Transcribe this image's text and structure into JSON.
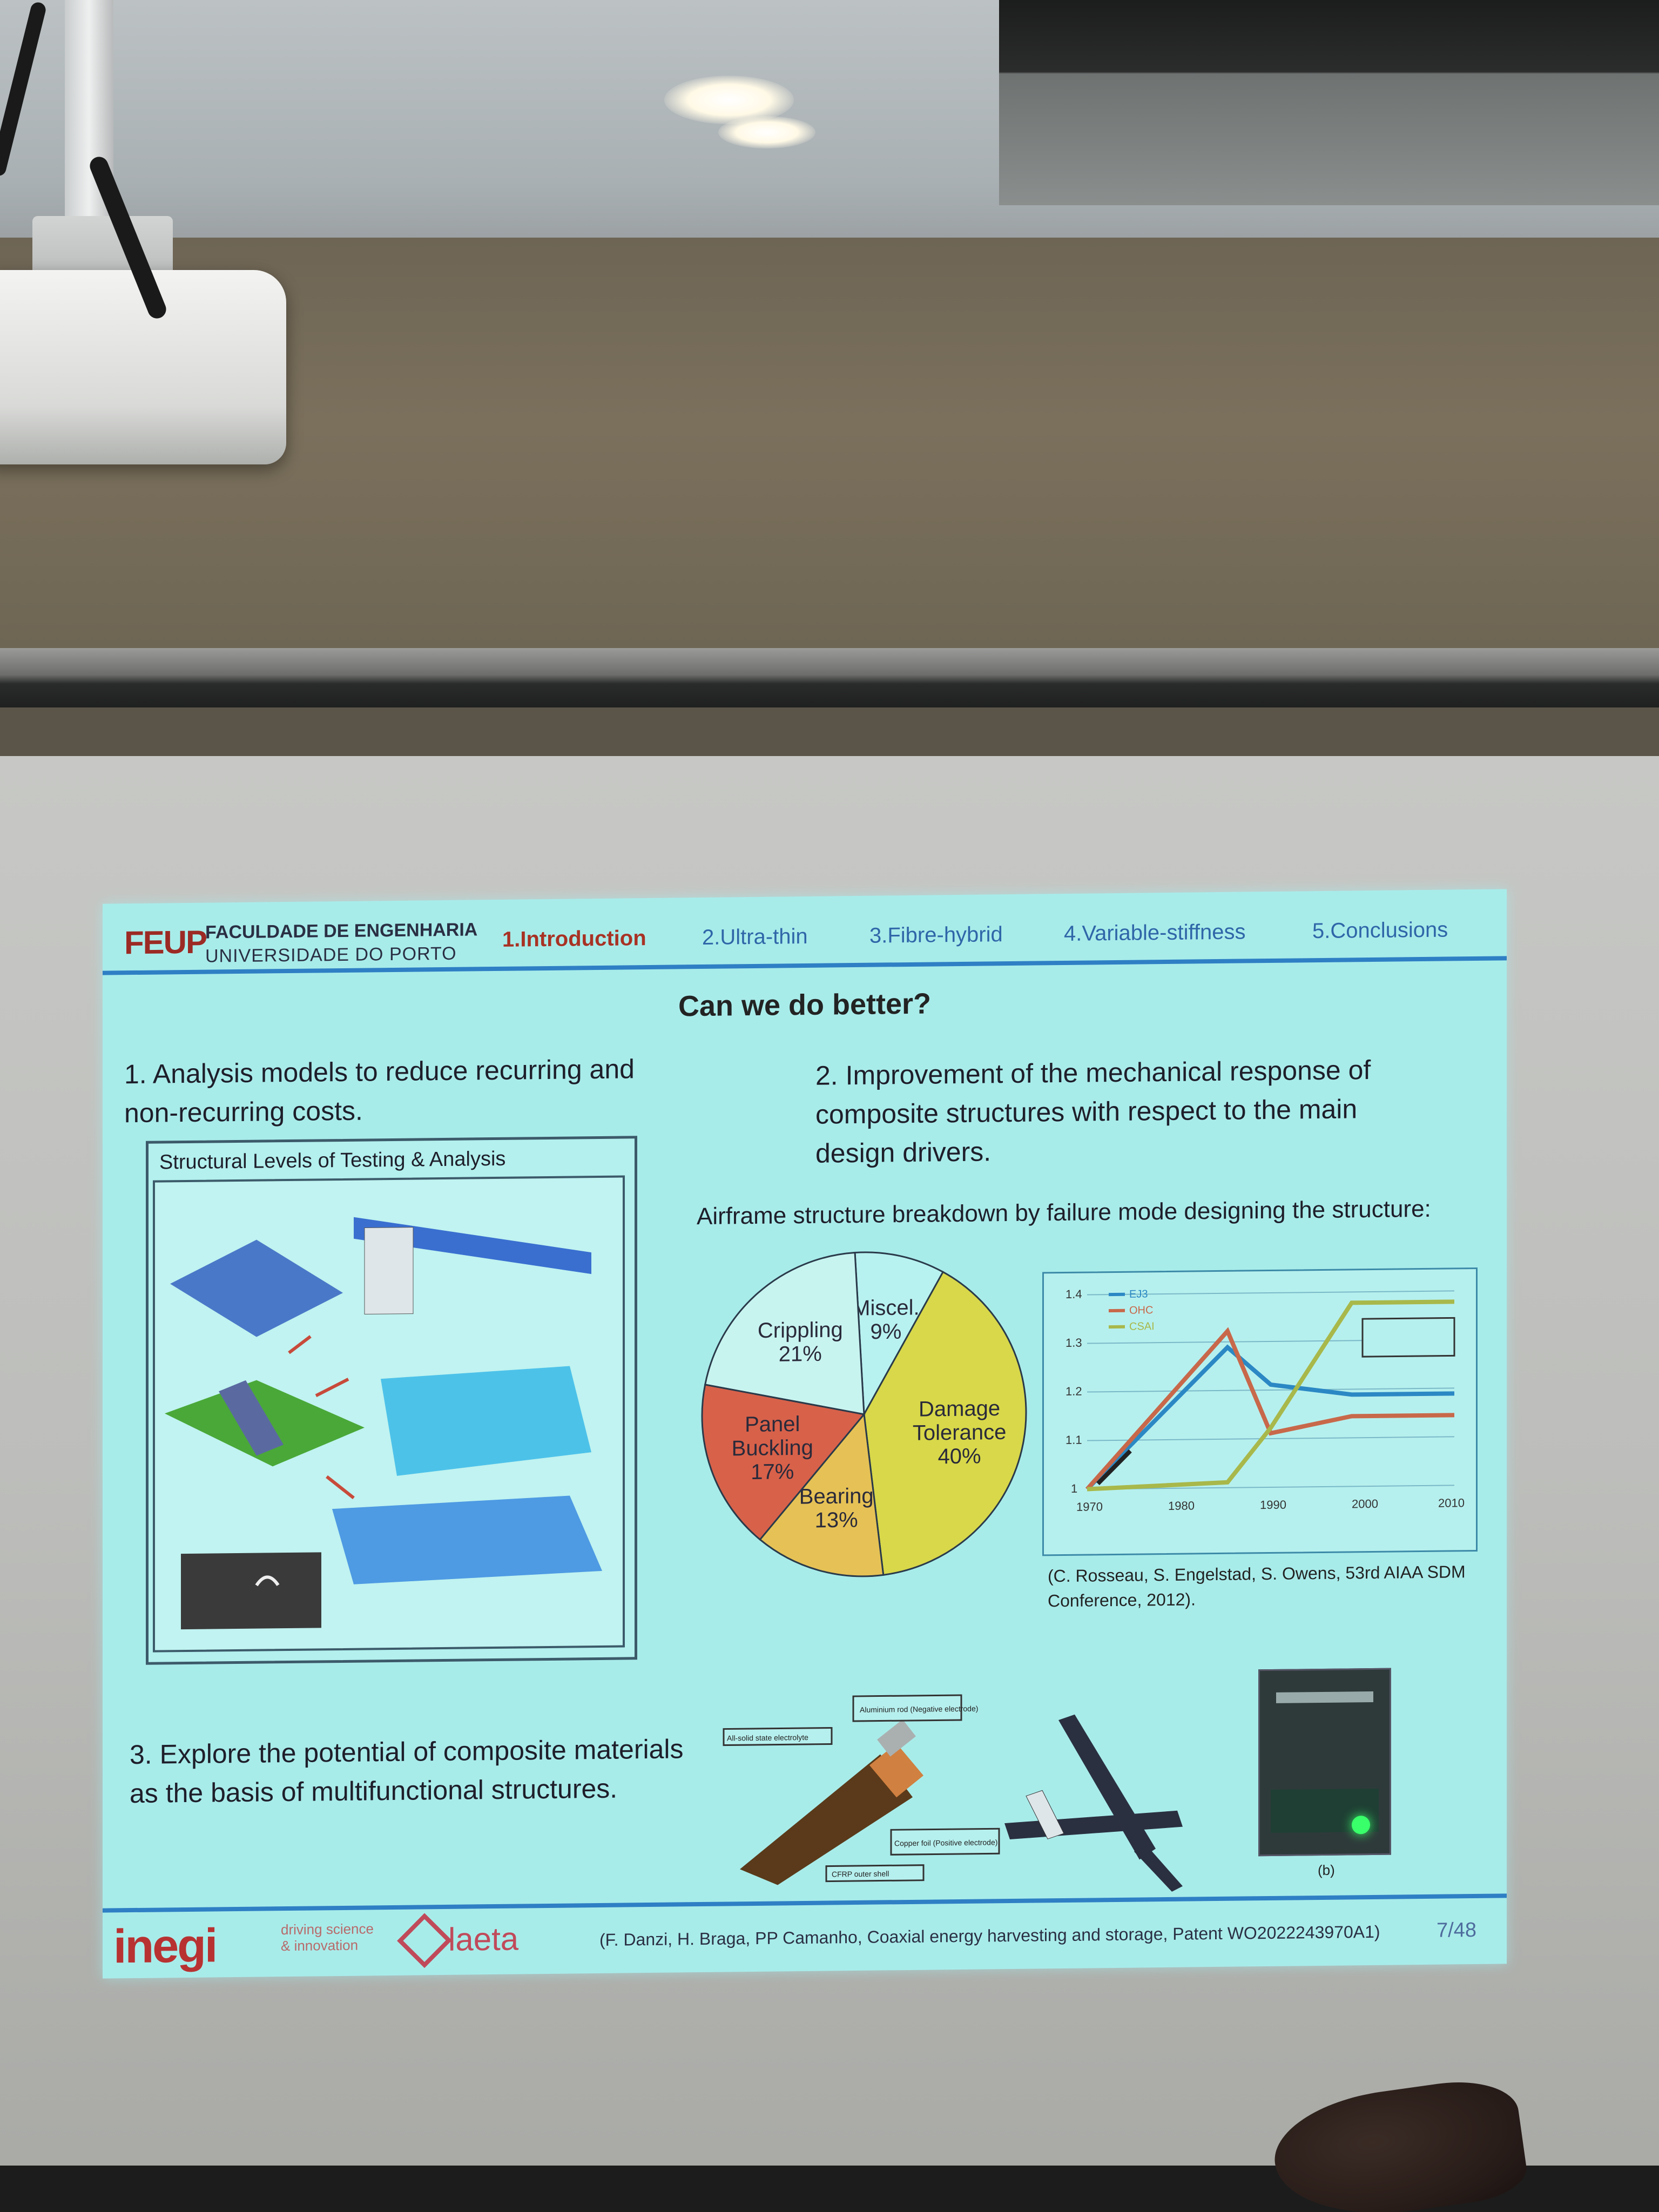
{
  "slide": {
    "header": {
      "logo_feup": "FEUP",
      "faculty": "FACULDADE DE ENGENHARIA",
      "university": "UNIVERSIDADE DO PORTO",
      "nav": [
        "1.Introduction",
        "2.Ultra-thin",
        "3.Fibre-hybrid",
        "4.Variable-stiffness",
        "5.Conclusions"
      ],
      "active_index": 0
    },
    "title": "Can we do better?",
    "point1": "1. Analysis models to reduce recurring and non-recurring costs.",
    "point1_line1": "1. Analysis models to reduce recurring and",
    "point1_line2": "non-recurring costs.",
    "structural_caption": "Structural Levels of Testing & Analysis",
    "point2_line1": "2. Improvement of the mechanical response of",
    "point2_line2": "composite structures with respect to the main",
    "point2_line3": "design drivers.",
    "breakdown_title": "Airframe structure breakdown by failure mode designing the structure:",
    "pie": {
      "slices": [
        {
          "label": "Miscel.",
          "percent_text": "9%",
          "value": 9,
          "color": "#b8f2f0"
        },
        {
          "label": "Damage Tolerance",
          "label_line1": "Damage",
          "label_line2": "Tolerance",
          "percent_text": "40%",
          "value": 40,
          "color": "#d8d84a"
        },
        {
          "label": "Bearing",
          "percent_text": "13%",
          "value": 13,
          "color": "#e6c256"
        },
        {
          "label": "Panel Buckling",
          "label_line1": "Panel",
          "label_line2": "Buckling",
          "percent_text": "17%",
          "value": 17,
          "color": "#d8614a"
        },
        {
          "label": "Crippling",
          "percent_text": "21%",
          "value": 21,
          "color": "#c8f4f0"
        }
      ]
    },
    "line_chart": {
      "legend": [
        "EJ3",
        "OHC",
        "CSAI"
      ],
      "series_colors": [
        "#2b88c4",
        "#c8684a",
        "#a8b84a"
      ],
      "x_ticks": [
        "1970",
        "1980",
        "1990",
        "2000",
        "2010"
      ],
      "y_ticks": [
        "1",
        "1.1",
        "1.2",
        "1.3",
        "1.4"
      ]
    },
    "citation1_line1": "(C. Rosseau, S. Engelstad, S. Owens, 53rd AIAA SDM",
    "citation1_line2": "Conference, 2012).",
    "point3_line1": "3. Explore the potential of composite materials",
    "point3_line2": "as the basis of multifunctional structures.",
    "cable_labels": {
      "top": "Aluminium rod (Negative electrode)",
      "left": "All-solid state electrolyte",
      "right": "Copper foil (Positive electrode)",
      "bottom": "CFRP outer shell"
    },
    "photo_caption": "(b)",
    "footer": {
      "inegi": "inegi",
      "inegi_tag_line1": "driving science",
      "inegi_tag_line2": "& innovation",
      "laeta": "laeta",
      "patent": "(F. Danzi, H. Braga, PP Camanho, Coaxial energy harvesting and storage, Patent WO2022243970A1)",
      "page": "7/48"
    }
  }
}
